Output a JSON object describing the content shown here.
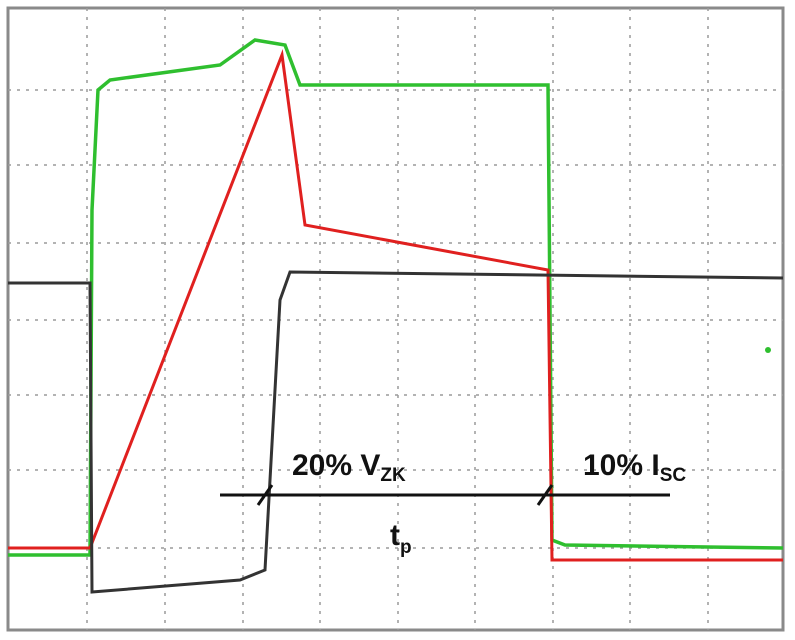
{
  "annotations": [
    {
      "main": "20% V",
      "sub": "ZK"
    },
    {
      "main": "10% I",
      "sub": "SC"
    },
    {
      "main": "t",
      "sub": "p"
    }
  ]
}
